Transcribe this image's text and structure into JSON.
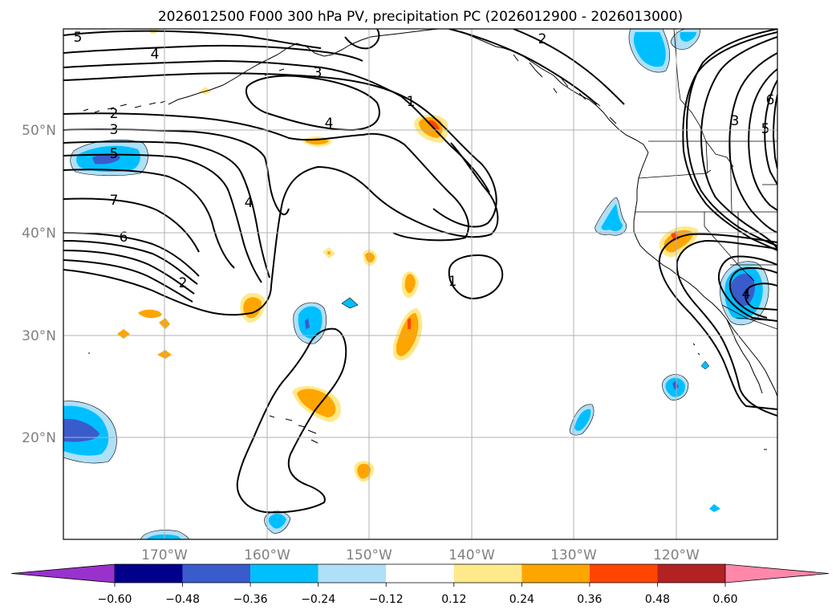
{
  "title": "2026012500 F000 300 hPa PV, precipitation PC (2026012900 - 2026013000)",
  "longitude_labels": [
    "170°W",
    "160°W",
    "150°W",
    "140°W",
    "130°W",
    "120°W"
  ],
  "latitude_labels": [
    "50°N",
    "40°N",
    "30°N",
    "20°N"
  ],
  "colorbar": {
    "tick_labels": [
      "−0.60",
      "−0.48",
      "−0.36",
      "−0.24",
      "−0.12",
      "0.12",
      "0.24",
      "0.36",
      "0.48",
      "0.60"
    ],
    "colors": {
      "under": "#9932cc",
      "bins": [
        "#00008b",
        "#3a5bcc",
        "#00bfff",
        "#afe0f8",
        "#ffffff",
        "#ffe98a",
        "#ffa500",
        "#ff4500",
        "#b22222",
        "#ff88aa"
      ],
      "over": "#ff88aa"
    }
  },
  "pv_contour_labels": [
    {
      "text": "5"
    },
    {
      "text": "4"
    },
    {
      "text": "3"
    },
    {
      "text": "2"
    },
    {
      "text": "3"
    },
    {
      "text": "4"
    },
    {
      "text": "1"
    },
    {
      "text": "2"
    },
    {
      "text": "5"
    },
    {
      "text": "7"
    },
    {
      "text": "6"
    },
    {
      "text": "4"
    },
    {
      "text": "2"
    },
    {
      "text": "1"
    },
    {
      "text": "3"
    },
    {
      "text": "5"
    },
    {
      "text": "6"
    },
    {
      "text": "4"
    }
  ],
  "colors": {
    "contour": "#000000",
    "coast": "#000000",
    "grid": "#b0b0b0",
    "tick_text": "#808080",
    "precip_light_blue": "#afe0f8",
    "precip_blue": "#00bfff",
    "precip_mid_blue": "#3a5bcc",
    "precip_yellow": "#ffe98a",
    "precip_orange": "#ffa500",
    "precip_red": "#ff4500"
  }
}
